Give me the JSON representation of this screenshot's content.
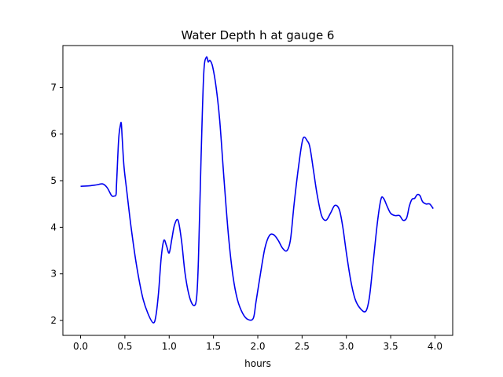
{
  "chart_data": {
    "type": "line",
    "title": "Water Depth h at gauge 6",
    "xlabel": "hours",
    "ylabel": "",
    "xlim": [
      -0.2,
      4.2
    ],
    "ylim": [
      1.68,
      7.9
    ],
    "xticks": [
      0.0,
      0.5,
      1.0,
      1.5,
      2.0,
      2.5,
      3.0,
      3.5,
      4.0
    ],
    "xtick_labels": [
      "0.0",
      "0.5",
      "1.0",
      "1.5",
      "2.0",
      "2.5",
      "3.0",
      "3.5",
      "4.0"
    ],
    "yticks": [
      2,
      3,
      4,
      5,
      6,
      7
    ],
    "ytick_labels": [
      "2",
      "3",
      "4",
      "5",
      "6",
      "7"
    ],
    "grid": false,
    "legend": "none",
    "series": [
      {
        "color": "#0000ee",
        "x": [
          0.0,
          0.1,
          0.18,
          0.25,
          0.3,
          0.35,
          0.38,
          0.4,
          0.405,
          0.41,
          0.43,
          0.45,
          0.46,
          0.47,
          0.49,
          0.52,
          0.57,
          0.63,
          0.7,
          0.76,
          0.82,
          0.85,
          0.88,
          0.91,
          0.94,
          0.97,
          1.0,
          1.03,
          1.06,
          1.1,
          1.14,
          1.18,
          1.23,
          1.28,
          1.31,
          1.33,
          1.36,
          1.39,
          1.42,
          1.44,
          1.46,
          1.49,
          1.53,
          1.57,
          1.62,
          1.67,
          1.72,
          1.77,
          1.83,
          1.89,
          1.95,
          1.98,
          2.03,
          2.08,
          2.13,
          2.18,
          2.23,
          2.28,
          2.33,
          2.37,
          2.41,
          2.46,
          2.51,
          2.56,
          2.59,
          2.63,
          2.67,
          2.72,
          2.77,
          2.82,
          2.87,
          2.92,
          2.96,
          3.0,
          3.05,
          3.1,
          3.16,
          3.22,
          3.26,
          3.3,
          3.35,
          3.39,
          3.42,
          3.46,
          3.5,
          3.55,
          3.6,
          3.64,
          3.68,
          3.71,
          3.74,
          3.77,
          3.8,
          3.83,
          3.86,
          3.9,
          3.94,
          3.98
        ],
        "y": [
          4.88,
          4.89,
          4.91,
          4.93,
          4.85,
          4.68,
          4.67,
          4.7,
          4.9,
          5.1,
          5.9,
          6.2,
          6.22,
          5.9,
          5.3,
          4.8,
          4.0,
          3.2,
          2.5,
          2.15,
          1.95,
          2.1,
          2.6,
          3.35,
          3.72,
          3.6,
          3.45,
          3.75,
          4.05,
          4.15,
          3.7,
          3.0,
          2.5,
          2.32,
          2.5,
          3.3,
          5.5,
          7.3,
          7.65,
          7.55,
          7.58,
          7.45,
          7.0,
          6.3,
          5.0,
          3.8,
          2.95,
          2.45,
          2.15,
          2.02,
          2.05,
          2.4,
          3.0,
          3.55,
          3.82,
          3.84,
          3.72,
          3.55,
          3.5,
          3.75,
          4.5,
          5.3,
          5.9,
          5.85,
          5.7,
          5.2,
          4.7,
          4.25,
          4.15,
          4.3,
          4.47,
          4.38,
          4.0,
          3.45,
          2.85,
          2.45,
          2.25,
          2.2,
          2.5,
          3.2,
          4.1,
          4.6,
          4.62,
          4.45,
          4.3,
          4.25,
          4.25,
          4.15,
          4.2,
          4.45,
          4.6,
          4.62,
          4.7,
          4.68,
          4.55,
          4.5,
          4.5,
          4.4
        ]
      }
    ]
  }
}
